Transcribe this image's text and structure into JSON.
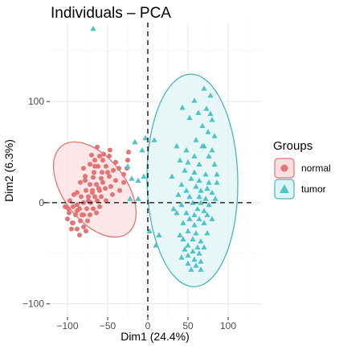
{
  "chart_data": {
    "type": "scatter",
    "title": "Individuals – PCA",
    "xlabel": "Dim1 (24.4%)",
    "ylabel": "Dim2 (6.3%)",
    "xlim": [
      -122,
      142
    ],
    "ylim": [
      -113,
      178
    ],
    "x_ticks": [
      -100,
      -50,
      0,
      50,
      100
    ],
    "x_tick_labels": [
      "−100",
      "−50",
      "0",
      "50",
      "100"
    ],
    "y_ticks": [
      -100,
      0,
      100
    ],
    "y_tick_labels": [
      "−100",
      "0",
      "100"
    ],
    "grid": true,
    "reference_lines": {
      "x": 0,
      "y": 0,
      "style": "dashed"
    },
    "legend": {
      "title": "Groups",
      "position": "right"
    },
    "series": [
      {
        "name": "normal",
        "marker": "circle",
        "color": "#e57373",
        "points": [
          [
            -63,
            55
          ],
          [
            -47,
            52
          ],
          [
            -48,
            46
          ],
          [
            -60,
            46
          ],
          [
            -70,
            47
          ],
          [
            -56,
            42
          ],
          [
            -66,
            42
          ],
          [
            -24,
            50
          ],
          [
            -25,
            42
          ],
          [
            -26,
            34
          ],
          [
            -40,
            40
          ],
          [
            -52,
            36
          ],
          [
            -62,
            36
          ],
          [
            -72,
            38
          ],
          [
            -80,
            34
          ],
          [
            -43,
            32
          ],
          [
            -57,
            30
          ],
          [
            -67,
            30
          ],
          [
            -48,
            26
          ],
          [
            -58,
            24
          ],
          [
            -68,
            25
          ],
          [
            -78,
            26
          ],
          [
            -40,
            22
          ],
          [
            -30,
            20
          ],
          [
            -64,
            18
          ],
          [
            -72,
            18
          ],
          [
            -84,
            20
          ],
          [
            -53,
            14
          ],
          [
            -60,
            12
          ],
          [
            -69,
            12
          ],
          [
            -77,
            12
          ],
          [
            -88,
            10
          ],
          [
            -44,
            8
          ],
          [
            -58,
            6
          ],
          [
            -66,
            6
          ],
          [
            -74,
            6
          ],
          [
            -83,
            6
          ],
          [
            -92,
            8
          ],
          [
            -52,
            2
          ],
          [
            -63,
            2
          ],
          [
            -71,
            0
          ],
          [
            -80,
            0
          ],
          [
            -88,
            -2
          ],
          [
            -97,
            2
          ],
          [
            -60,
            -4
          ],
          [
            -68,
            -6
          ],
          [
            -76,
            -6
          ],
          [
            -85,
            -6
          ],
          [
            -93,
            -4
          ],
          [
            -103,
            -4
          ],
          [
            -64,
            -10
          ],
          [
            -72,
            -12
          ],
          [
            -80,
            -12
          ],
          [
            -90,
            -12
          ],
          [
            -98,
            -10
          ],
          [
            -75,
            -18
          ],
          [
            -84,
            -18
          ],
          [
            -93,
            -20
          ],
          [
            -100,
            -16
          ],
          [
            -80,
            -24
          ],
          [
            -88,
            -26
          ],
          [
            -95,
            -26
          ],
          [
            -77,
            -28
          ],
          [
            -85,
            -32
          ],
          [
            -88,
            -8
          ],
          [
            -74,
            2
          ],
          [
            -56,
            20
          ],
          [
            -46,
            16
          ],
          [
            -36,
            34
          ],
          [
            -30,
            28
          ],
          [
            -69,
            10
          ],
          [
            -82,
            -12
          ],
          [
            -94,
            -20
          ],
          [
            -61,
            14
          ],
          [
            -50,
            30
          ],
          [
            -35,
            12
          ],
          [
            -99,
            -6
          ],
          [
            -78,
            22
          ],
          [
            -66,
            36
          ],
          [
            -55,
            48
          ]
        ]
      },
      {
        "name": "tumor",
        "marker": "triangle",
        "color": "#4fc3c7",
        "points": [
          [
            -68,
            172
          ],
          [
            70,
            113
          ],
          [
            78,
            106
          ],
          [
            58,
            101
          ],
          [
            43,
            94
          ],
          [
            73,
            93
          ],
          [
            63,
            89
          ],
          [
            80,
            82
          ],
          [
            52,
            84
          ],
          [
            68,
            76
          ],
          [
            -3,
            64
          ],
          [
            75,
            70
          ],
          [
            83,
            66
          ],
          [
            60,
            62
          ],
          [
            70,
            56
          ],
          [
            48,
            52
          ],
          [
            80,
            52
          ],
          [
            58,
            46
          ],
          [
            -7,
            52
          ],
          [
            76,
            46
          ],
          [
            50,
            40
          ],
          [
            64,
            38
          ],
          [
            83,
            38
          ],
          [
            -25,
            36
          ],
          [
            46,
            32
          ],
          [
            58,
            30
          ],
          [
            72,
            28
          ],
          [
            86,
            28
          ],
          [
            -20,
            24
          ],
          [
            -12,
            22
          ],
          [
            54,
            24
          ],
          [
            64,
            22
          ],
          [
            76,
            20
          ],
          [
            42,
            18
          ],
          [
            60,
            16
          ],
          [
            74,
            14
          ],
          [
            48,
            12
          ],
          [
            66,
            12
          ],
          [
            80,
            10
          ],
          [
            38,
            8
          ],
          [
            52,
            6
          ],
          [
            64,
            6
          ],
          [
            72,
            4
          ],
          [
            84,
            4
          ],
          [
            56,
            0
          ],
          [
            66,
            0
          ],
          [
            76,
            -2
          ],
          [
            42,
            -2
          ],
          [
            62,
            -6
          ],
          [
            70,
            -8
          ],
          [
            36,
            -10
          ],
          [
            48,
            -10
          ],
          [
            58,
            -12
          ],
          [
            74,
            -12
          ],
          [
            80,
            -16
          ],
          [
            52,
            -16
          ],
          [
            64,
            -16
          ],
          [
            44,
            -20
          ],
          [
            70,
            -20
          ],
          [
            58,
            -22
          ],
          [
            50,
            -28
          ],
          [
            60,
            -30
          ],
          [
            74,
            -30
          ],
          [
            2,
            -28
          ],
          [
            44,
            -36
          ],
          [
            56,
            -36
          ],
          [
            66,
            -38
          ],
          [
            50,
            -42
          ],
          [
            62,
            -44
          ],
          [
            70,
            -44
          ],
          [
            46,
            -46
          ],
          [
            56,
            -48
          ],
          [
            64,
            -50
          ],
          [
            50,
            -52
          ],
          [
            42,
            -54
          ],
          [
            58,
            -56
          ],
          [
            66,
            -58
          ],
          [
            50,
            -60
          ],
          [
            60,
            -62
          ],
          [
            54,
            -66
          ],
          [
            66,
            -66
          ],
          [
            10,
            -42
          ],
          [
            14,
            -32
          ],
          [
            -12,
            4
          ],
          [
            36,
            56
          ],
          [
            40,
            42
          ],
          [
            86,
            20
          ],
          [
            30,
            26
          ],
          [
            32,
            -6
          ],
          [
            40,
            -32
          ],
          [
            68,
            56
          ],
          [
            78,
            88
          ],
          [
            8,
            62
          ],
          [
            -16,
            60
          ],
          [
            -22,
            4
          ],
          [
            -5,
            26
          ]
        ]
      }
    ],
    "ellipses": [
      {
        "series": "normal",
        "cx": -66,
        "cy": 13,
        "rx": 68,
        "ry": 31,
        "rotation_deg": 53,
        "fill": "#f9dfdf",
        "stroke": "#e57373"
      },
      {
        "series": "tumor",
        "cx": 55.5,
        "cy": 22,
        "rx": 56.5,
        "ry": 105,
        "rotation_deg": -1,
        "fill": "#dff4f6",
        "stroke": "#45b7bd"
      }
    ]
  }
}
